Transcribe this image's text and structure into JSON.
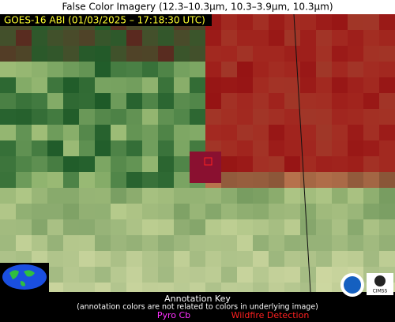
{
  "header": {
    "title": "False Color Imagery (12.3–10.3µm, 10.3–3.9µm, 10.3µm)"
  },
  "overlay": {
    "satellite_label": "GOES-16 ABI (01/03/2025 – 17:18:30 UTC)"
  },
  "annotation_key": {
    "title": "Annotation Key",
    "note": "(annotation colors are not related to colors in underlying image)",
    "items": [
      "Pyro Cb",
      "Wildfire Detection"
    ]
  },
  "logos": {
    "cimss": "CIMSS"
  }
}
